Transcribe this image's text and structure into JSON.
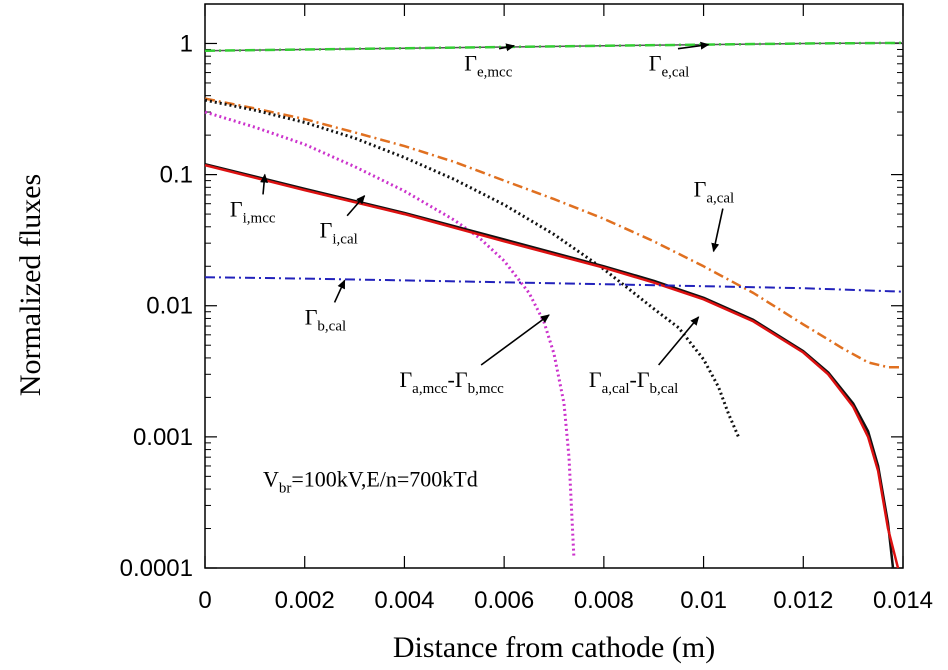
{
  "chart_data": {
    "type": "line",
    "xlabel": "Distance from cathode (m)",
    "ylabel": "Normalized fluxes",
    "yscale": "log",
    "xlim": [
      0,
      0.014
    ],
    "ylim": [
      0.0001,
      2
    ],
    "x_ticks": [
      {
        "value": 0,
        "label": "0"
      },
      {
        "value": 0.002,
        "label": "0.002"
      },
      {
        "value": 0.004,
        "label": "0.004"
      },
      {
        "value": 0.006,
        "label": "0.006"
      },
      {
        "value": 0.008,
        "label": "0.008"
      },
      {
        "value": 0.01,
        "label": "0.01"
      },
      {
        "value": 0.012,
        "label": "0.012"
      },
      {
        "value": 0.014,
        "label": "0.014"
      }
    ],
    "y_ticks": [
      {
        "value": 1,
        "label": "1"
      },
      {
        "value": 0.1,
        "label": "0.1"
      },
      {
        "value": 0.01,
        "label": "0.01"
      },
      {
        "value": 0.001,
        "label": "0.001"
      },
      {
        "value": 0.0001,
        "label": "0.0001"
      }
    ],
    "condition_text": {
      "main": "V",
      "sub": "br",
      "rest": "=100kV,E/n=700kTd"
    },
    "series": [
      {
        "key": "e_mcc",
        "color": "#555555",
        "style": "solid",
        "width": 1.5,
        "x": [
          0,
          0.002,
          0.004,
          0.006,
          0.008,
          0.01,
          0.012,
          0.014
        ],
        "y": [
          0.88,
          0.9,
          0.92,
          0.94,
          0.96,
          0.98,
          1.0,
          1.01
        ]
      },
      {
        "key": "e_cal",
        "color": "#33cc33",
        "style": "dashdot",
        "width": 2.5,
        "x": [
          0,
          0.002,
          0.004,
          0.006,
          0.008,
          0.01,
          0.012,
          0.014
        ],
        "y": [
          0.88,
          0.9,
          0.92,
          0.94,
          0.96,
          0.98,
          1.0,
          1.01
        ]
      },
      {
        "key": "a_cal",
        "color": "#e07020",
        "style": "dashdot",
        "width": 2.5,
        "x": [
          0,
          0.001,
          0.002,
          0.003,
          0.004,
          0.005,
          0.006,
          0.007,
          0.008,
          0.009,
          0.01,
          0.011,
          0.012,
          0.0128,
          0.0133,
          0.0137,
          0.014
        ],
        "y": [
          0.38,
          0.32,
          0.265,
          0.21,
          0.165,
          0.125,
          0.09,
          0.065,
          0.046,
          0.031,
          0.02,
          0.0125,
          0.0072,
          0.0047,
          0.0037,
          0.0034,
          0.0034
        ]
      },
      {
        "key": "a_minus_b_cal",
        "color": "#111111",
        "style": "dotted",
        "width": 3,
        "x": [
          0,
          0.001,
          0.002,
          0.003,
          0.004,
          0.005,
          0.006,
          0.007,
          0.008,
          0.009,
          0.0095,
          0.01,
          0.0103,
          0.0105,
          0.0107
        ],
        "y": [
          0.37,
          0.31,
          0.25,
          0.19,
          0.135,
          0.092,
          0.059,
          0.035,
          0.019,
          0.0095,
          0.0068,
          0.0039,
          0.0024,
          0.0015,
          0.001
        ]
      },
      {
        "key": "a_minus_b_mcc",
        "color": "#cc33cc",
        "style": "dotted",
        "width": 3,
        "x": [
          0,
          0.001,
          0.002,
          0.003,
          0.004,
          0.005,
          0.0055,
          0.006,
          0.0065,
          0.0068,
          0.007,
          0.0072,
          0.0073,
          0.0074
        ],
        "y": [
          0.3,
          0.23,
          0.17,
          0.115,
          0.075,
          0.045,
          0.033,
          0.022,
          0.0125,
          0.0075,
          0.0043,
          0.0018,
          0.0007,
          0.00012
        ]
      },
      {
        "key": "i_mcc",
        "color": "#111111",
        "style": "solid",
        "width": 2.5,
        "x": [
          0,
          0.002,
          0.004,
          0.006,
          0.008,
          0.009,
          0.01,
          0.011,
          0.012,
          0.0125,
          0.013,
          0.0133,
          0.0135,
          0.0137,
          0.0138
        ],
        "y": [
          0.12,
          0.078,
          0.051,
          0.032,
          0.02,
          0.0155,
          0.0115,
          0.0078,
          0.0045,
          0.0031,
          0.0018,
          0.0011,
          0.0006,
          0.00022,
          0.0001
        ]
      },
      {
        "key": "i_cal",
        "color": "#dd1111",
        "style": "solid",
        "width": 2.5,
        "x": [
          0,
          0.002,
          0.004,
          0.006,
          0.008,
          0.009,
          0.01,
          0.011,
          0.012,
          0.0125,
          0.013,
          0.0133,
          0.0135,
          0.0137,
          0.0139
        ],
        "y": [
          0.118,
          0.076,
          0.05,
          0.031,
          0.0195,
          0.015,
          0.0112,
          0.0076,
          0.0044,
          0.003,
          0.0017,
          0.001,
          0.00055,
          0.0002,
          0.0001
        ]
      },
      {
        "key": "b_cal",
        "color": "#2222bb",
        "style": "dashdot",
        "width": 2,
        "x": [
          0,
          0.002,
          0.004,
          0.006,
          0.008,
          0.01,
          0.012,
          0.014
        ],
        "y": [
          0.0165,
          0.0161,
          0.0156,
          0.0151,
          0.0146,
          0.0141,
          0.0136,
          0.0128
        ]
      }
    ],
    "annotations": [
      {
        "key": "e_mcc",
        "parts": [
          {
            "t": "Γ",
            "sub": false
          },
          {
            "t": "e,mcc",
            "sub": true
          }
        ],
        "text_at": [
          0.0052,
          0.62
        ],
        "arrow_to": [
          0.0062,
          0.96
        ]
      },
      {
        "key": "e_cal",
        "parts": [
          {
            "t": "Γ",
            "sub": false
          },
          {
            "t": "e,cal",
            "sub": true
          }
        ],
        "text_at": [
          0.0089,
          0.62
        ],
        "arrow_to": [
          0.0101,
          0.98
        ]
      },
      {
        "key": "i_mcc",
        "parts": [
          {
            "t": "Γ",
            "sub": false
          },
          {
            "t": "i,mcc",
            "sub": true
          }
        ],
        "text_at": [
          0.0005,
          0.048
        ],
        "arrow_to": [
          0.0012,
          0.1
        ]
      },
      {
        "key": "i_cal",
        "parts": [
          {
            "t": "Γ",
            "sub": false
          },
          {
            "t": "i,cal",
            "sub": true
          }
        ],
        "text_at": [
          0.0023,
          0.033
        ],
        "arrow_to": [
          0.0032,
          0.069
        ]
      },
      {
        "key": "a_cal",
        "parts": [
          {
            "t": "Γ",
            "sub": false
          },
          {
            "t": "a,cal",
            "sub": true
          }
        ],
        "text_at": [
          0.0098,
          0.068
        ],
        "arrow_to": [
          0.0102,
          0.026
        ]
      },
      {
        "key": "b_cal",
        "parts": [
          {
            "t": "Γ",
            "sub": false
          },
          {
            "t": "b,cal",
            "sub": true
          }
        ],
        "text_at": [
          0.002,
          0.0072
        ],
        "arrow_to": [
          0.0028,
          0.0156
        ]
      },
      {
        "key": "a_minus_b_mcc",
        "parts": [
          {
            "t": "Γ",
            "sub": false
          },
          {
            "t": "a,mcc",
            "sub": true
          },
          {
            "t": "-Γ",
            "sub": false
          },
          {
            "t": "b,mcc",
            "sub": true
          }
        ],
        "text_at": [
          0.0039,
          0.0024
        ],
        "arrow_to": [
          0.0069,
          0.0085
        ]
      },
      {
        "key": "a_minus_b_cal",
        "parts": [
          {
            "t": "Γ",
            "sub": false
          },
          {
            "t": "a,cal",
            "sub": true
          },
          {
            "t": "-Γ",
            "sub": false
          },
          {
            "t": "b,cal",
            "sub": true
          }
        ],
        "text_at": [
          0.0077,
          0.0024
        ],
        "arrow_to": [
          0.0099,
          0.0082
        ]
      }
    ]
  }
}
